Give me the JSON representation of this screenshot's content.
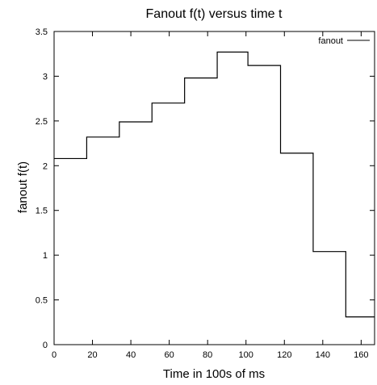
{
  "chart_data": {
    "type": "line",
    "title": "Fanout f(t) versus time t",
    "xlabel": "Time in 100s of ms",
    "ylabel": "fanout f(t)",
    "xlim": [
      0,
      167
    ],
    "ylim": [
      0,
      3.5
    ],
    "x_ticks": [
      0,
      20,
      40,
      60,
      80,
      100,
      120,
      140,
      160
    ],
    "x_tick_labels": [
      "0",
      "20",
      "40",
      "60",
      "80",
      "100",
      "120",
      "140",
      "160"
    ],
    "y_ticks": [
      0,
      0.5,
      1,
      1.5,
      2,
      2.5,
      3,
      3.5
    ],
    "y_tick_labels": [
      "0",
      "0.5",
      "1",
      "1.5",
      "2",
      "2.5",
      "3",
      "3.5"
    ],
    "grid": false,
    "legend_position": "top-right",
    "series": [
      {
        "name": "fanout",
        "color": "#000000",
        "step": true,
        "x": [
          0,
          17,
          34,
          51,
          68,
          85,
          101,
          118,
          135,
          152,
          167
        ],
        "y": [
          2.08,
          2.32,
          2.49,
          2.7,
          2.98,
          3.27,
          3.12,
          2.14,
          1.04,
          0.31,
          0.31
        ]
      }
    ]
  }
}
